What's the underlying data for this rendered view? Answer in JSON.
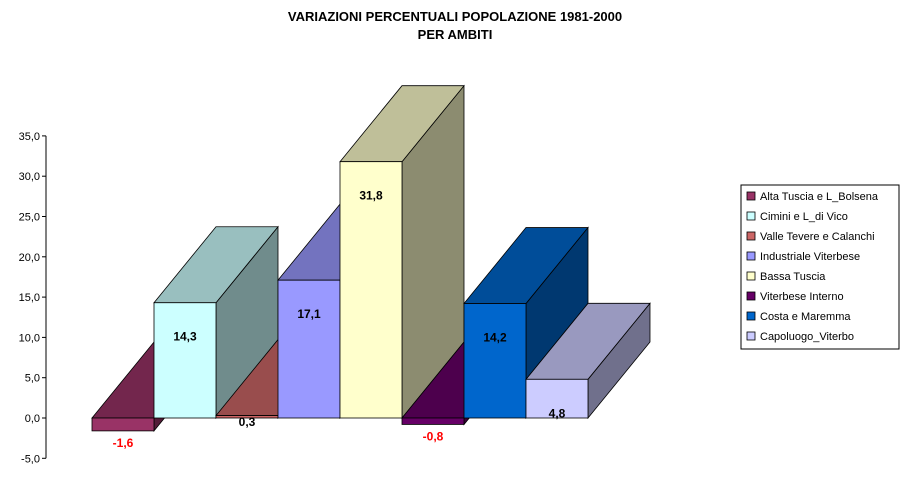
{
  "chart_data": {
    "type": "bar",
    "title": "VARIAZIONI PERCENTUALI POPOLAZIONE 1981-2000",
    "subtitle": "PER AMBITI",
    "xlabel": "",
    "ylabel": "",
    "ylim": [
      -5,
      35
    ],
    "yticks": [
      "-5,0",
      "0,0",
      "5,0",
      "10,0",
      "15,0",
      "20,0",
      "25,0",
      "30,0",
      "35,0"
    ],
    "grid": false,
    "legend_position": "right",
    "series": [
      {
        "name": "Alta Tuscia e L_Bolsena",
        "value": -1.6,
        "label": "-1,6",
        "color": "#993366",
        "label_color": "#ff0000"
      },
      {
        "name": "Cimini e L_di Vico",
        "value": 14.3,
        "label": "14,3",
        "color": "#ccffff",
        "label_color": "#000000"
      },
      {
        "name": "Valle Tevere e Calanchi",
        "value": 0.3,
        "label": "0,3",
        "color": "#cc6666",
        "label_color": "#000000"
      },
      {
        "name": "Industriale Viterbese",
        "value": 17.1,
        "label": "17,1",
        "color": "#9999ff",
        "label_color": "#000000"
      },
      {
        "name": "Bassa Tuscia",
        "value": 31.8,
        "label": "31,8",
        "color": "#ffffcc",
        "label_color": "#000000"
      },
      {
        "name": "Viterbese Interno",
        "value": -0.8,
        "label": "-0,8",
        "color": "#660066",
        "label_color": "#ff0000"
      },
      {
        "name": "Costa e Maremma",
        "value": 14.2,
        "label": "14,2",
        "color": "#0066cc",
        "label_color": "#000000"
      },
      {
        "name": "Capoluogo_Viterbo",
        "value": 4.8,
        "label": "4,8",
        "color": "#ccccff",
        "label_color": "#000000"
      }
    ]
  }
}
